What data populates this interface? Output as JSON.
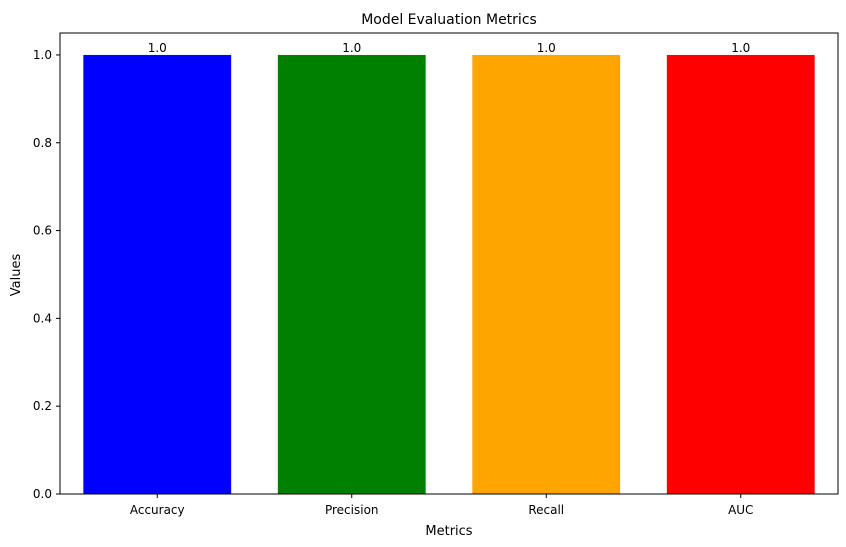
{
  "chart_data": {
    "type": "bar",
    "title": "Model Evaluation Metrics",
    "xlabel": "Metrics",
    "ylabel": "Values",
    "categories": [
      "Accuracy",
      "Precision",
      "Recall",
      "AUC"
    ],
    "values": [
      1.0,
      1.0,
      1.0,
      1.0
    ],
    "value_labels": [
      "1.0",
      "1.0",
      "1.0",
      "1.0"
    ],
    "colors": [
      "#0000ff",
      "#008000",
      "#ffa500",
      "#ff0000"
    ],
    "ylim": [
      0,
      1.05
    ],
    "yticks": [
      0.0,
      0.2,
      0.4,
      0.6,
      0.8,
      1.0
    ],
    "ytick_labels": [
      "0.0",
      "0.2",
      "0.4",
      "0.6",
      "0.8",
      "1.0"
    ],
    "grid": false,
    "legend": "none"
  }
}
